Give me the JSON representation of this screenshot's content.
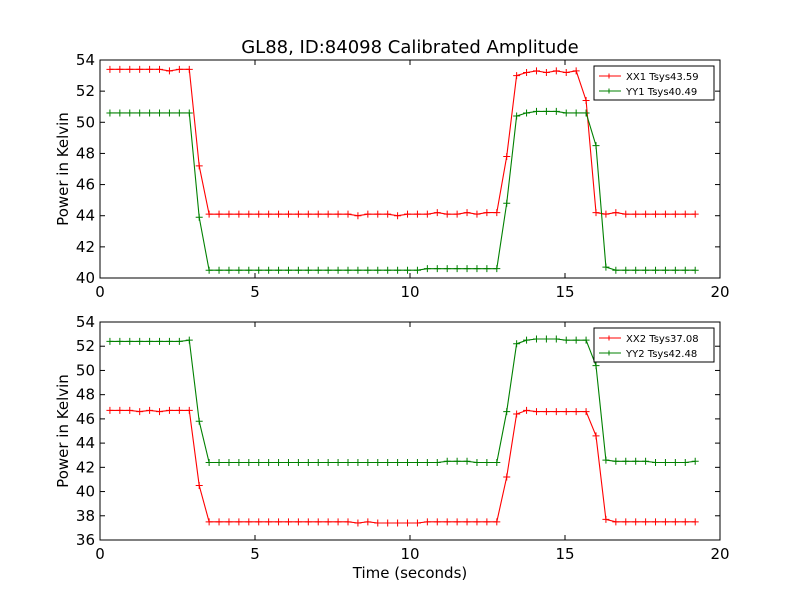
{
  "figure": {
    "title": "GL88, ID:84098 Calibrated Amplitude",
    "xlabel": "Time (seconds)"
  },
  "chart_data": [
    {
      "type": "line",
      "title": "GL88, ID:84098 Calibrated Amplitude",
      "xlabel": "",
      "ylabel": "Power in Kelvin",
      "xlim": [
        0,
        20
      ],
      "ylim": [
        40,
        54
      ],
      "xticks": [
        0,
        5,
        10,
        15,
        20
      ],
      "yticks": [
        40,
        42,
        44,
        46,
        48,
        50,
        52,
        54
      ],
      "grid": false,
      "legend": "top-right",
      "x": [
        0.32,
        0.64,
        0.96,
        1.28,
        1.6,
        1.92,
        2.24,
        2.56,
        2.88,
        3.2,
        3.52,
        3.84,
        4.16,
        4.48,
        4.8,
        5.12,
        5.44,
        5.76,
        6.08,
        6.4,
        6.72,
        7.04,
        7.36,
        7.68,
        8.0,
        8.32,
        8.64,
        8.96,
        9.28,
        9.6,
        9.92,
        10.24,
        10.56,
        10.88,
        11.2,
        11.52,
        11.84,
        12.16,
        12.48,
        12.8,
        13.12,
        13.44,
        13.76,
        14.08,
        14.4,
        14.72,
        15.04,
        15.36,
        15.68,
        16.0,
        16.32,
        16.64,
        16.96,
        17.28,
        17.6,
        17.92,
        18.24,
        18.56,
        18.88,
        19.2
      ],
      "series": [
        {
          "name": "XX1 Tsys43.59",
          "color": "#ff0000",
          "values": [
            53.4,
            53.4,
            53.4,
            53.4,
            53.4,
            53.4,
            53.3,
            53.4,
            53.4,
            47.2,
            44.1,
            44.1,
            44.1,
            44.1,
            44.1,
            44.1,
            44.1,
            44.1,
            44.1,
            44.1,
            44.1,
            44.1,
            44.1,
            44.1,
            44.1,
            44.0,
            44.1,
            44.1,
            44.1,
            44.0,
            44.1,
            44.1,
            44.1,
            44.2,
            44.1,
            44.1,
            44.2,
            44.1,
            44.2,
            44.2,
            47.8,
            53.0,
            53.2,
            53.3,
            53.2,
            53.3,
            53.2,
            53.3,
            51.4,
            44.2,
            44.1,
            44.2,
            44.1,
            44.1,
            44.1,
            44.1,
            44.1,
            44.1,
            44.1,
            44.1
          ]
        },
        {
          "name": "YY1 Tsys40.49",
          "color": "#008000",
          "values": [
            50.6,
            50.6,
            50.6,
            50.6,
            50.6,
            50.6,
            50.6,
            50.6,
            50.6,
            43.9,
            40.5,
            40.5,
            40.5,
            40.5,
            40.5,
            40.5,
            40.5,
            40.5,
            40.5,
            40.5,
            40.5,
            40.5,
            40.5,
            40.5,
            40.5,
            40.5,
            40.5,
            40.5,
            40.5,
            40.5,
            40.5,
            40.5,
            40.6,
            40.6,
            40.6,
            40.6,
            40.6,
            40.6,
            40.6,
            40.6,
            44.8,
            50.4,
            50.6,
            50.7,
            50.7,
            50.7,
            50.6,
            50.6,
            50.6,
            48.5,
            40.7,
            40.5,
            40.5,
            40.5,
            40.5,
            40.5,
            40.5,
            40.5,
            40.5,
            40.5
          ]
        }
      ]
    },
    {
      "type": "line",
      "title": "",
      "xlabel": "Time (seconds)",
      "ylabel": "Power in Kelvin",
      "xlim": [
        0,
        20
      ],
      "ylim": [
        36,
        54
      ],
      "xticks": [
        0,
        5,
        10,
        15,
        20
      ],
      "yticks": [
        36,
        38,
        40,
        42,
        44,
        46,
        48,
        50,
        52,
        54
      ],
      "grid": false,
      "legend": "top-right",
      "x": [
        0.32,
        0.64,
        0.96,
        1.28,
        1.6,
        1.92,
        2.24,
        2.56,
        2.88,
        3.2,
        3.52,
        3.84,
        4.16,
        4.48,
        4.8,
        5.12,
        5.44,
        5.76,
        6.08,
        6.4,
        6.72,
        7.04,
        7.36,
        7.68,
        8.0,
        8.32,
        8.64,
        8.96,
        9.28,
        9.6,
        9.92,
        10.24,
        10.56,
        10.88,
        11.2,
        11.52,
        11.84,
        12.16,
        12.48,
        12.8,
        13.12,
        13.44,
        13.76,
        14.08,
        14.4,
        14.72,
        15.04,
        15.36,
        15.68,
        16.0,
        16.32,
        16.64,
        16.96,
        17.28,
        17.6,
        17.92,
        18.24,
        18.56,
        18.88,
        19.2
      ],
      "series": [
        {
          "name": "XX2 Tsys37.08",
          "color": "#ff0000",
          "values": [
            46.7,
            46.7,
            46.7,
            46.6,
            46.7,
            46.6,
            46.7,
            46.7,
            46.7,
            40.5,
            37.5,
            37.5,
            37.5,
            37.5,
            37.5,
            37.5,
            37.5,
            37.5,
            37.5,
            37.5,
            37.5,
            37.5,
            37.5,
            37.5,
            37.5,
            37.4,
            37.5,
            37.4,
            37.4,
            37.4,
            37.4,
            37.4,
            37.5,
            37.5,
            37.5,
            37.5,
            37.5,
            37.5,
            37.5,
            37.5,
            41.2,
            46.4,
            46.7,
            46.6,
            46.6,
            46.6,
            46.6,
            46.6,
            46.6,
            44.6,
            37.7,
            37.5,
            37.5,
            37.5,
            37.5,
            37.5,
            37.5,
            37.5,
            37.5,
            37.5
          ]
        },
        {
          "name": "YY2 Tsys42.48",
          "color": "#008000",
          "values": [
            52.4,
            52.4,
            52.4,
            52.4,
            52.4,
            52.4,
            52.4,
            52.4,
            52.5,
            45.8,
            42.4,
            42.4,
            42.4,
            42.4,
            42.4,
            42.4,
            42.4,
            42.4,
            42.4,
            42.4,
            42.4,
            42.4,
            42.4,
            42.4,
            42.4,
            42.4,
            42.4,
            42.4,
            42.4,
            42.4,
            42.4,
            42.4,
            42.4,
            42.4,
            42.5,
            42.5,
            42.5,
            42.4,
            42.4,
            42.4,
            46.6,
            52.2,
            52.5,
            52.6,
            52.6,
            52.6,
            52.5,
            52.5,
            52.5,
            50.4,
            42.6,
            42.5,
            42.5,
            42.5,
            42.5,
            42.4,
            42.4,
            42.4,
            42.4,
            42.5
          ]
        }
      ]
    }
  ]
}
